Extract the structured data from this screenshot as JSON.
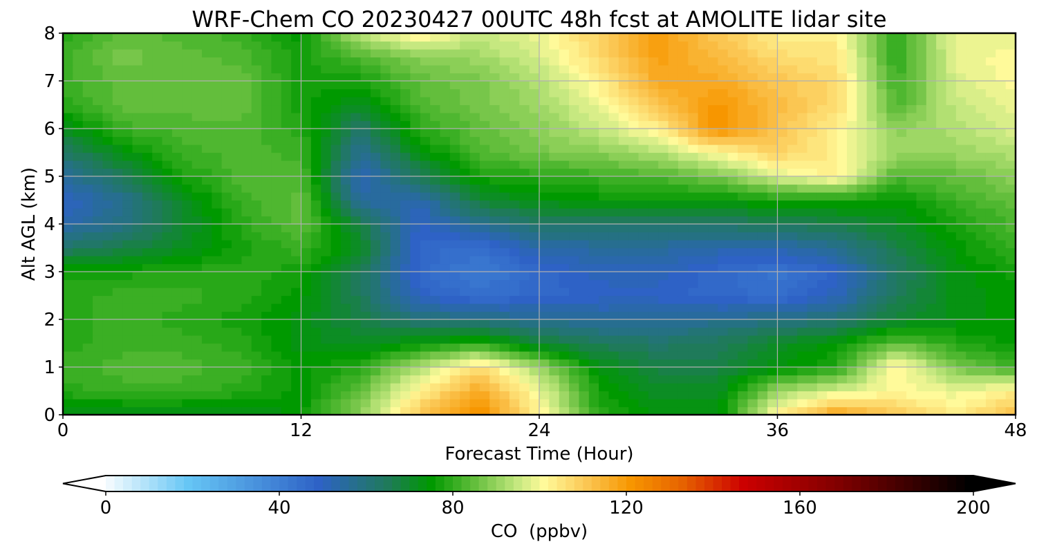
{
  "chart_data": {
    "type": "heatmap",
    "title": "WRF-Chem CO  20230427 00UTC 48h fcst at AMOLITE lidar site",
    "xlabel": "Forecast Time (Hour)",
    "ylabel": "Alt AGL (km)",
    "xlim": [
      0,
      48
    ],
    "ylim": [
      0,
      8
    ],
    "x_ticks": [
      "0",
      "12",
      "24",
      "36",
      "48"
    ],
    "y_ticks": [
      "0",
      "1",
      "2",
      "3",
      "4",
      "5",
      "6",
      "7",
      "8"
    ],
    "grid": true,
    "colorbar": {
      "label": "CO  (ppbv)",
      "range": [
        0,
        200
      ],
      "extend": "both",
      "ticks": [
        "0",
        "40",
        "80",
        "120",
        "160",
        "200"
      ],
      "stops": [
        {
          "value": 0,
          "color": "#ffffff"
        },
        {
          "value": 20,
          "color": "#66c6f5"
        },
        {
          "value": 50,
          "color": "#2e62c6"
        },
        {
          "value": 66,
          "color": "#1f7a5a"
        },
        {
          "value": 76,
          "color": "#009900"
        },
        {
          "value": 86,
          "color": "#63be3c"
        },
        {
          "value": 96,
          "color": "#c6e880"
        },
        {
          "value": 102,
          "color": "#fffa9a"
        },
        {
          "value": 112,
          "color": "#fbc652"
        },
        {
          "value": 122,
          "color": "#f79600"
        },
        {
          "value": 134,
          "color": "#e66200"
        },
        {
          "value": 148,
          "color": "#cc0000"
        },
        {
          "value": 170,
          "color": "#800000"
        },
        {
          "value": 200,
          "color": "#000000"
        }
      ]
    },
    "field": {
      "units": "ppbv",
      "x": [
        0,
        3,
        6,
        9,
        12,
        15,
        18,
        21,
        24,
        27,
        30,
        33,
        36,
        39,
        42,
        45,
        48
      ],
      "y": [
        0,
        0.5,
        1,
        1.5,
        2,
        2.5,
        3,
        3.5,
        4,
        4.5,
        5,
        5.5,
        6,
        6.5,
        7,
        7.5,
        8
      ],
      "values": [
        [
          72,
          72,
          72,
          72,
          76,
          90,
          112,
          124,
          104,
          80,
          74,
          74,
          104,
          120,
          112,
          104,
          114
        ],
        [
          80,
          82,
          82,
          80,
          76,
          86,
          104,
          118,
          100,
          78,
          72,
          72,
          92,
          98,
          102,
          100,
          104
        ],
        [
          82,
          84,
          84,
          82,
          76,
          80,
          94,
          108,
          92,
          74,
          68,
          68,
          74,
          80,
          104,
          88,
          82
        ],
        [
          80,
          82,
          82,
          80,
          74,
          72,
          76,
          80,
          70,
          66,
          64,
          66,
          72,
          76,
          86,
          80,
          76
        ],
        [
          80,
          82,
          80,
          78,
          74,
          68,
          62,
          60,
          58,
          56,
          56,
          58,
          60,
          62,
          70,
          74,
          76
        ],
        [
          80,
          82,
          82,
          80,
          76,
          66,
          50,
          46,
          48,
          50,
          50,
          48,
          46,
          52,
          66,
          74,
          76
        ],
        [
          78,
          78,
          80,
          80,
          78,
          66,
          48,
          42,
          48,
          52,
          52,
          48,
          44,
          50,
          64,
          74,
          78
        ],
        [
          64,
          68,
          72,
          78,
          82,
          72,
          48,
          46,
          54,
          56,
          56,
          54,
          54,
          58,
          68,
          76,
          82
        ],
        [
          54,
          60,
          70,
          80,
          86,
          68,
          50,
          58,
          64,
          64,
          64,
          64,
          66,
          68,
          72,
          78,
          84
        ],
        [
          50,
          58,
          72,
          82,
          86,
          56,
          54,
          70,
          74,
          76,
          76,
          76,
          78,
          78,
          76,
          82,
          86
        ],
        [
          56,
          66,
          78,
          84,
          84,
          52,
          66,
          78,
          80,
          82,
          84,
          88,
          98,
          104,
          84,
          86,
          90
        ],
        [
          64,
          74,
          82,
          84,
          82,
          58,
          74,
          84,
          88,
          90,
          94,
          102,
          110,
          104,
          92,
          92,
          94
        ],
        [
          72,
          82,
          84,
          84,
          80,
          64,
          80,
          86,
          90,
          96,
          104,
          124,
          112,
          104,
          90,
          94,
          98
        ],
        [
          80,
          86,
          86,
          86,
          78,
          72,
          84,
          88,
          92,
          100,
          112,
          122,
          114,
          108,
          84,
          96,
          100
        ],
        [
          82,
          86,
          86,
          86,
          78,
          78,
          86,
          88,
          94,
          104,
          118,
          118,
          112,
          108,
          82,
          98,
          102
        ],
        [
          82,
          88,
          86,
          84,
          78,
          84,
          90,
          92,
          98,
          108,
          120,
          114,
          108,
          106,
          80,
          100,
          102
        ],
        [
          80,
          86,
          84,
          82,
          76,
          96,
          104,
          96,
          100,
          110,
          120,
          112,
          104,
          104,
          80,
          100,
          100
        ]
      ]
    }
  }
}
